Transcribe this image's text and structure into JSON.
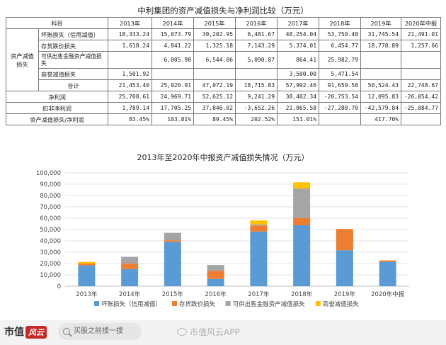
{
  "table": {
    "title": "中利集团的资产减值损失与净利润比较（万元）",
    "header": [
      "科目",
      "2013年",
      "2014年",
      "2015年",
      "2016年",
      "2017年",
      "2018年",
      "2019年",
      "2020年中报"
    ],
    "group_label": "资产减值损失",
    "rows": [
      {
        "label": "坏账损失（信用减值）",
        "cells": [
          "18,333.24",
          "15,073.79",
          "39,202.95",
          "6,481.67",
          "48,254.04",
          "53,750.48",
          "31,745.54",
          "21,491.01"
        ]
      },
      {
        "label": "存货跌价损失",
        "cells": [
          "1,618.24",
          "4,841.22",
          "1,325.18",
          "7,143.29",
          "5,374.01",
          "6,454.77",
          "18,778.89",
          "1,257.66"
        ]
      },
      {
        "label": "可供出售金融资产减值损失",
        "cells": [
          "",
          "6,005.90",
          "6,544.06",
          "5,090.87",
          "864.41",
          "25,982.79",
          "",
          ""
        ]
      },
      {
        "label": "商誉减值损失",
        "cells": [
          "1,501.92",
          "",
          "",
          "",
          "3,500.00",
          "5,471.54",
          "",
          ""
        ]
      },
      {
        "label": "合计",
        "cells": [
          "21,453.40",
          "25,920.91",
          "47,072.19",
          "18,715.83",
          "57,992.46",
          "91,659.58",
          "50,524.43",
          "22,748.67"
        ]
      }
    ],
    "net_profit": {
      "label": "净利润",
      "cells": [
        "25,708.61",
        "24,969.71",
        "52,625.12",
        "9,241.29",
        "38,402.34",
        "-20,753.54",
        "12,095.83",
        "-26,054.42"
      ]
    },
    "deducted_profit": {
      "label": "扣非净利润",
      "cells": [
        "1,789.14",
        "17,705.25",
        "37,846.02",
        "-3,652.26",
        "21,865.58",
        "-27,280.70",
        "-42,579.84",
        "-25,084.77"
      ]
    },
    "ratio": {
      "label": "资产减值损失/净利润",
      "cells": [
        "83.45%",
        "103.81%",
        "89.45%",
        "202.52%",
        "151.01%",
        "",
        "417.70%",
        ""
      ]
    }
  },
  "chart_data": {
    "type": "bar",
    "stacked": true,
    "title": "2013年至2020年中报资产减值损失情况（万元）",
    "categories": [
      "2013年",
      "2014年",
      "2015年",
      "2016年",
      "2017年",
      "2018年",
      "2019年",
      "2020年中报"
    ],
    "ylim": [
      0,
      100000
    ],
    "yticks": [
      0,
      10000,
      20000,
      30000,
      40000,
      50000,
      60000,
      70000,
      80000,
      90000,
      100000
    ],
    "ytick_labels": [
      "0",
      "10,000",
      "20,000",
      "30,000",
      "40,000",
      "50,000",
      "60,000",
      "70,000",
      "80,000",
      "90,000",
      "100,000"
    ],
    "grid": true,
    "legend": "bottom",
    "series": [
      {
        "name": "坏账损失（信用减值）",
        "color": "#5b9bd5",
        "values": [
          18333.24,
          15073.79,
          39202.95,
          6481.67,
          48254.04,
          53750.48,
          31745.54,
          21491.01
        ]
      },
      {
        "name": "存货跌价损失",
        "color": "#ed7d31",
        "values": [
          1618.24,
          4841.22,
          1325.18,
          7143.29,
          5374.01,
          6454.77,
          18778.89,
          1257.66
        ]
      },
      {
        "name": "可供出售金融资产减值损失",
        "color": "#a5a5a5",
        "values": [
          0,
          6005.9,
          6544.06,
          5090.87,
          864.41,
          25982.79,
          0,
          0
        ]
      },
      {
        "name": "商誉减值损失",
        "color": "#ffc000",
        "values": [
          1501.92,
          0,
          0,
          0,
          3500.0,
          5471.54,
          0,
          0
        ]
      }
    ]
  },
  "footer": {
    "brand": "市值",
    "brand_badge": "风云",
    "search_placeholder": "买股之前搜一搜",
    "watermark": "市值风云APP"
  }
}
